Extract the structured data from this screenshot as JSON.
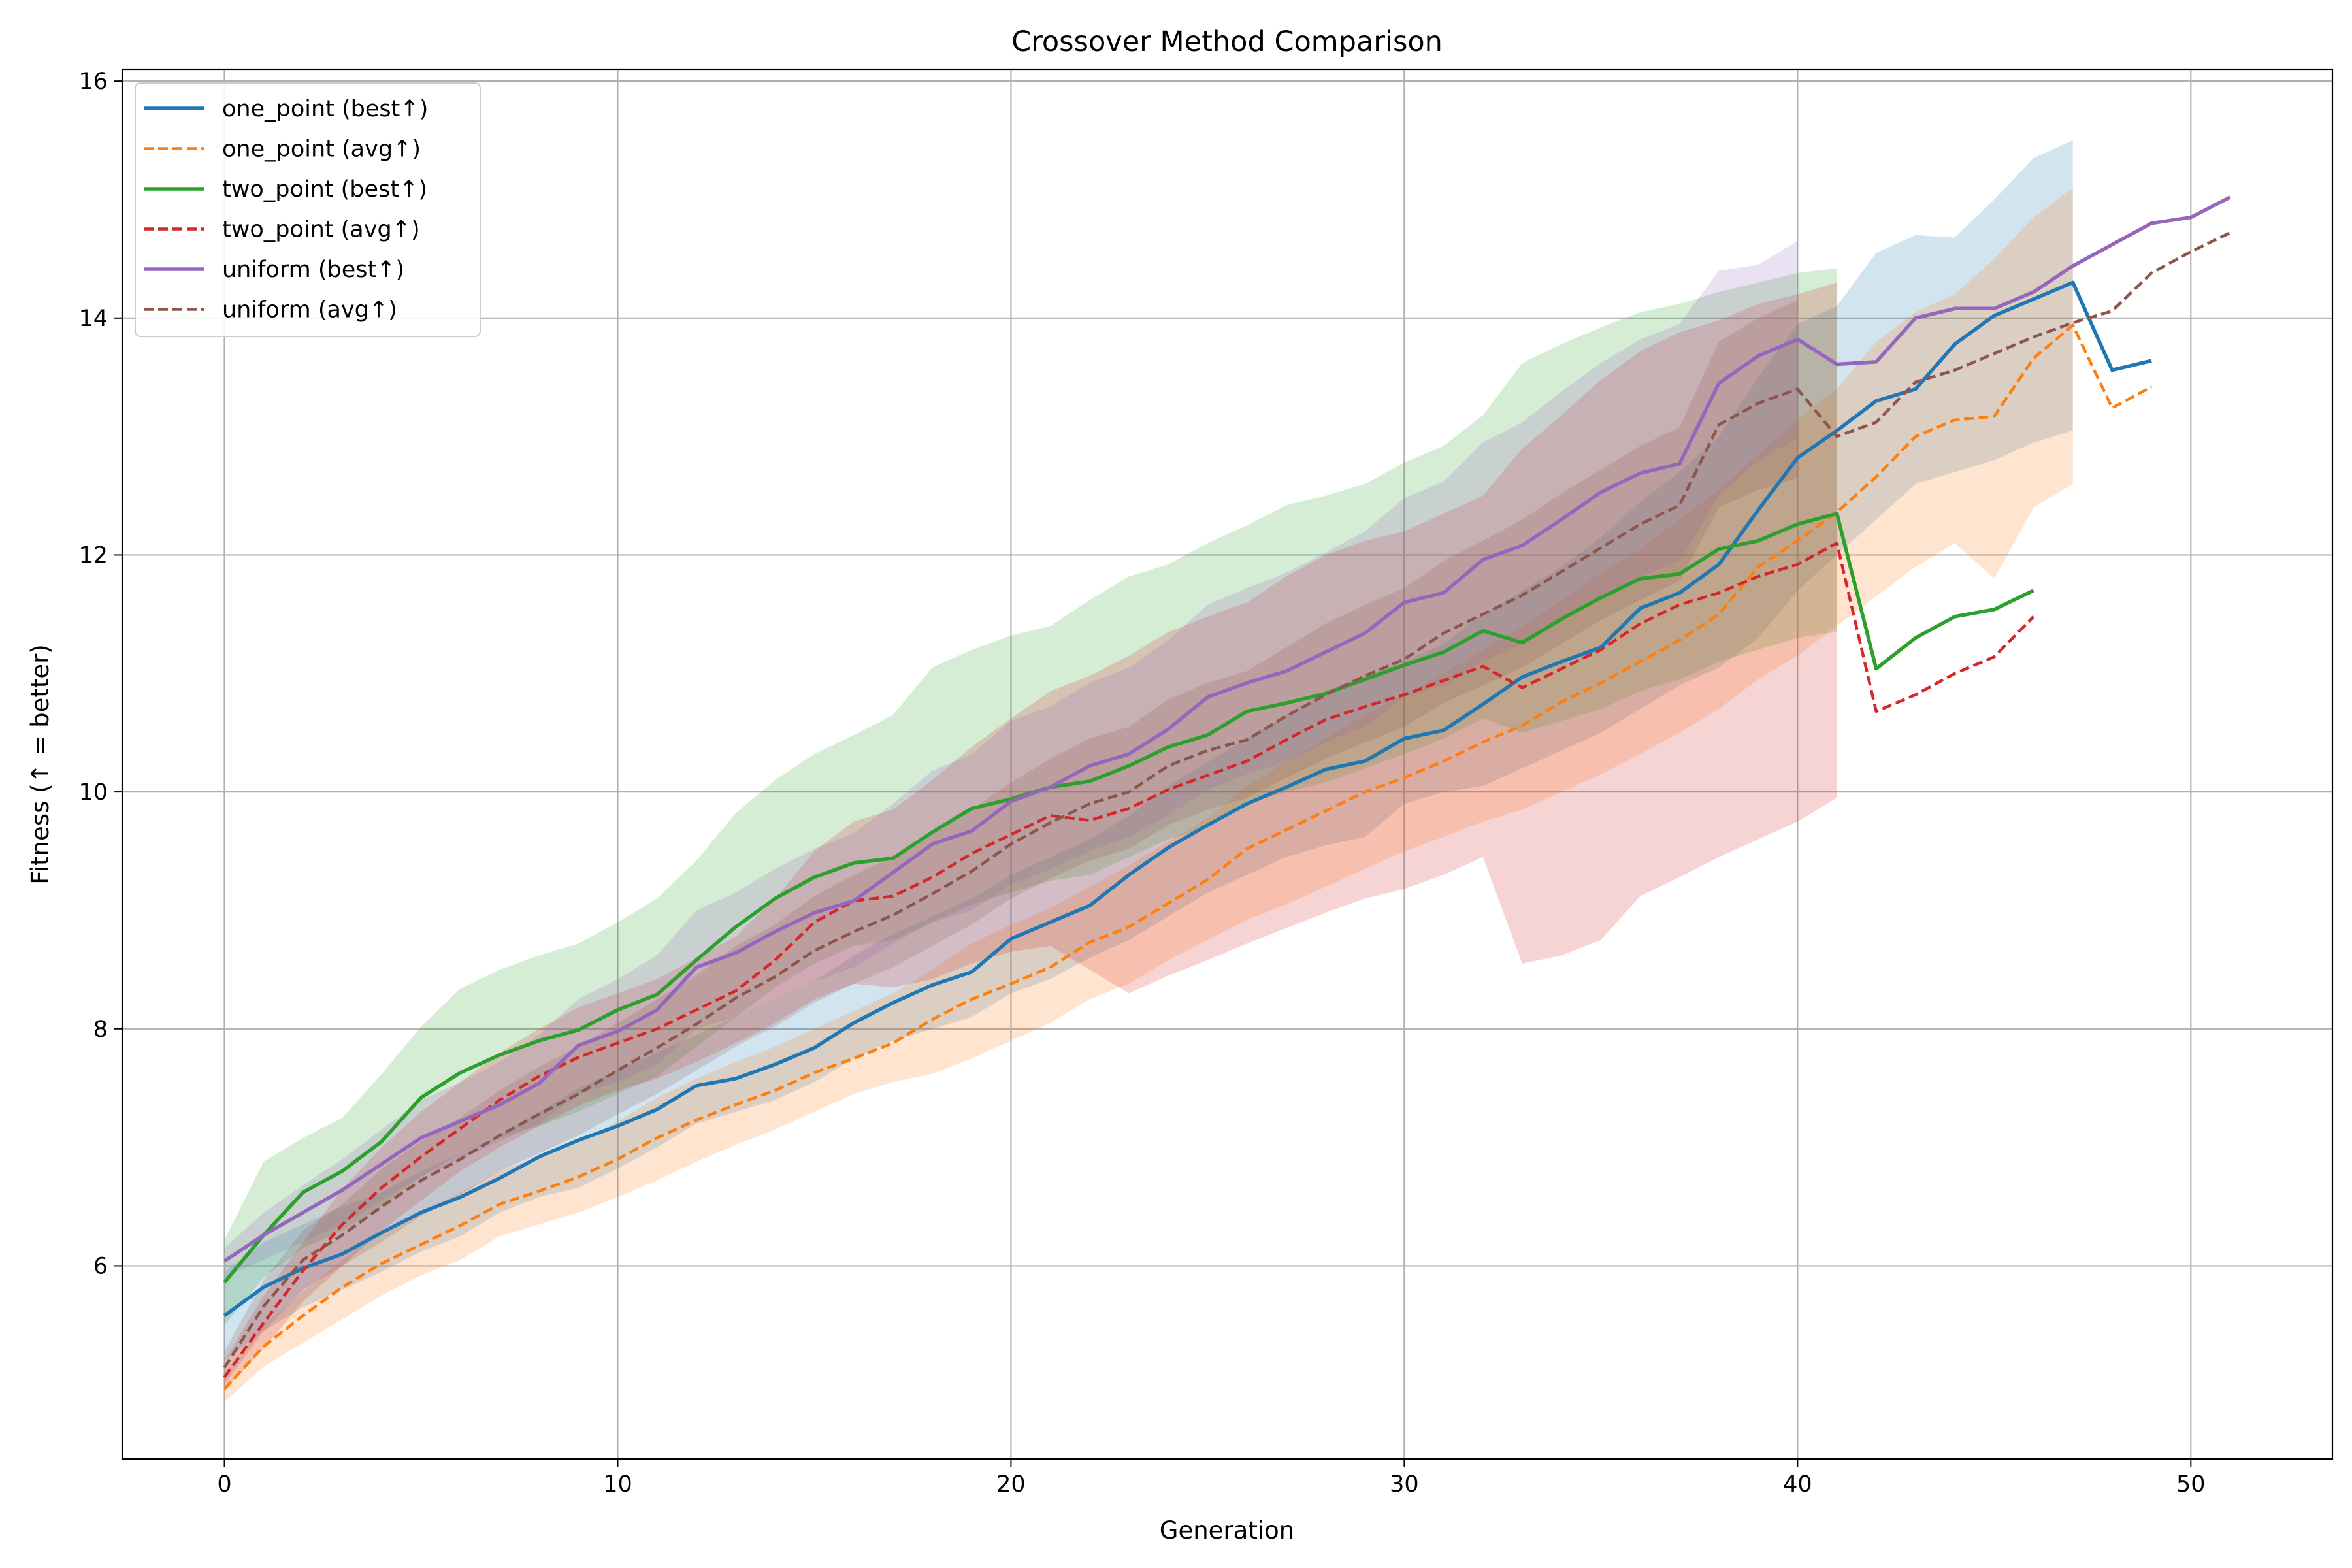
{
  "chart_data": {
    "type": "line",
    "title": "Crossover Method Comparison",
    "xlabel": "Generation",
    "ylabel": "Fitness (↑ = better)",
    "xlim": [
      -2.6,
      53.6
    ],
    "ylim": [
      4.37,
      16.1
    ],
    "xticks": [
      0,
      10,
      20,
      30,
      40,
      50
    ],
    "yticks": [
      6,
      8,
      10,
      12,
      14,
      16
    ],
    "grid": true,
    "legend_position": "top-left",
    "series": [
      {
        "name": "one_point (best↑)",
        "color": "#1f77b4",
        "dash": "solid",
        "values": [
          5.58,
          5.82,
          5.98,
          6.1,
          6.28,
          6.45,
          6.58,
          6.74,
          6.92,
          7.06,
          7.18,
          7.32,
          7.52,
          7.58,
          7.7,
          7.84,
          8.05,
          8.22,
          8.37,
          8.48,
          8.76,
          8.9,
          9.04,
          9.3,
          9.53,
          9.72,
          9.9,
          10.04,
          10.19,
          10.26,
          10.45,
          10.52,
          10.74,
          10.97,
          11.1,
          11.22,
          11.55,
          11.68,
          11.92,
          12.38,
          12.82,
          13.05,
          13.3,
          13.4,
          13.78,
          14.02,
          14.16,
          14.3,
          13.56,
          13.64
        ],
        "band_lo": [
          5.2,
          5.45,
          5.65,
          5.8,
          5.95,
          6.12,
          6.25,
          6.45,
          6.58,
          6.66,
          6.82,
          7.0,
          7.2,
          7.3,
          7.4,
          7.55,
          7.75,
          7.9,
          8.0,
          8.1,
          8.3,
          8.42,
          8.6,
          8.75,
          8.95,
          9.15,
          9.3,
          9.45,
          9.55,
          9.62,
          9.9,
          10.0,
          10.05,
          10.2,
          10.35,
          10.5,
          10.7,
          10.9,
          11.05,
          11.3,
          11.7,
          12.0,
          12.3,
          12.6,
          12.7,
          12.8,
          12.95,
          13.05,
          null,
          null
        ],
        "band_hi": [
          5.95,
          6.2,
          6.35,
          6.5,
          6.62,
          6.8,
          6.95,
          7.1,
          7.3,
          7.5,
          7.65,
          7.8,
          7.95,
          8.1,
          8.25,
          8.4,
          8.62,
          8.8,
          8.95,
          9.1,
          9.3,
          9.45,
          9.6,
          9.8,
          10.05,
          10.25,
          10.45,
          10.65,
          10.85,
          10.98,
          11.1,
          11.25,
          11.5,
          11.7,
          11.9,
          12.15,
          12.45,
          12.7,
          13.0,
          13.5,
          13.95,
          14.1,
          14.55,
          14.7,
          14.68,
          15.0,
          15.35,
          15.5,
          null,
          null
        ]
      },
      {
        "name": "one_point (avg↑)",
        "color": "#ff7f0e",
        "dash": "dashed",
        "values": [
          4.96,
          5.32,
          5.58,
          5.82,
          6.02,
          6.18,
          6.34,
          6.52,
          6.63,
          6.75,
          6.9,
          7.08,
          7.23,
          7.36,
          7.48,
          7.63,
          7.75,
          7.88,
          8.08,
          8.25,
          8.38,
          8.52,
          8.73,
          8.86,
          9.06,
          9.26,
          9.52,
          9.68,
          9.84,
          10.0,
          10.12,
          10.26,
          10.42,
          10.56,
          10.76,
          10.92,
          11.1,
          11.28,
          11.5,
          11.9,
          12.12,
          12.36,
          12.66,
          13.0,
          13.14,
          13.17,
          13.66,
          13.94,
          13.24,
          13.42
        ],
        "band_lo": [
          4.85,
          5.15,
          5.35,
          5.55,
          5.75,
          5.92,
          6.05,
          6.25,
          6.35,
          6.45,
          6.58,
          6.72,
          6.88,
          7.02,
          7.15,
          7.3,
          7.45,
          7.55,
          7.62,
          7.75,
          7.9,
          8.05,
          8.25,
          8.38,
          8.58,
          8.75,
          8.92,
          9.05,
          9.2,
          9.35,
          9.5,
          9.62,
          9.75,
          9.85,
          10.0,
          10.15,
          10.32,
          10.5,
          10.7,
          10.95,
          11.15,
          11.4,
          11.65,
          11.9,
          12.1,
          11.8,
          12.4,
          12.6,
          null,
          null
        ],
        "band_hi": [
          5.1,
          5.5,
          5.78,
          6.05,
          6.28,
          6.45,
          6.62,
          6.8,
          6.92,
          7.05,
          7.22,
          7.42,
          7.58,
          7.72,
          7.85,
          8.0,
          8.15,
          8.3,
          8.5,
          8.72,
          8.88,
          9.02,
          9.2,
          9.38,
          9.58,
          9.78,
          10.05,
          10.25,
          10.45,
          10.65,
          10.82,
          11.0,
          11.2,
          11.4,
          11.62,
          11.85,
          12.05,
          12.3,
          12.55,
          12.85,
          13.15,
          13.4,
          13.8,
          14.05,
          14.2,
          14.5,
          14.85,
          15.1,
          null,
          null
        ]
      },
      {
        "name": "two_point (best↑)",
        "color": "#2ca02c",
        "dash": "solid",
        "values": [
          5.86,
          6.26,
          6.62,
          6.8,
          7.05,
          7.42,
          7.63,
          7.78,
          7.9,
          7.99,
          8.16,
          8.29,
          8.58,
          8.86,
          9.1,
          9.28,
          9.4,
          9.44,
          9.66,
          9.86,
          9.94,
          10.04,
          10.09,
          10.22,
          10.38,
          10.48,
          10.68,
          10.75,
          10.83,
          10.95,
          11.07,
          11.18,
          11.36,
          11.26,
          11.46,
          11.64,
          11.8,
          11.84,
          12.05,
          12.12,
          12.26,
          12.35,
          11.04,
          11.3,
          11.48,
          11.54,
          11.7
        ],
        "band_lo": [
          5.5,
          5.9,
          6.15,
          6.3,
          6.5,
          6.75,
          6.95,
          7.08,
          7.18,
          7.3,
          7.45,
          7.6,
          7.85,
          8.1,
          8.35,
          8.55,
          8.7,
          8.75,
          8.9,
          9.05,
          9.15,
          9.25,
          9.3,
          9.45,
          9.6,
          9.7,
          9.9,
          10.0,
          10.08,
          10.2,
          10.32,
          10.45,
          10.62,
          10.5,
          10.6,
          10.7,
          10.85,
          10.95,
          11.1,
          11.2,
          11.3,
          11.35,
          null,
          null,
          null,
          null,
          null
        ],
        "band_hi": [
          6.22,
          6.88,
          7.08,
          7.25,
          7.62,
          8.02,
          8.34,
          8.5,
          8.62,
          8.72,
          8.9,
          9.1,
          9.42,
          9.82,
          10.1,
          10.32,
          10.48,
          10.65,
          11.05,
          11.2,
          11.32,
          11.4,
          11.62,
          11.82,
          11.92,
          12.1,
          12.25,
          12.42,
          12.5,
          12.6,
          12.78,
          12.92,
          13.18,
          13.62,
          13.78,
          13.92,
          14.05,
          14.12,
          14.22,
          14.3,
          14.38,
          14.42,
          null,
          null,
          null,
          null,
          null
        ]
      },
      {
        "name": "two_point (avg↑)",
        "color": "#d62728",
        "dash": "dashed",
        "values": [
          5.06,
          5.52,
          5.96,
          6.35,
          6.66,
          6.92,
          7.16,
          7.4,
          7.6,
          7.76,
          7.88,
          8.0,
          8.16,
          8.32,
          8.58,
          8.9,
          9.08,
          9.12,
          9.28,
          9.48,
          9.64,
          9.8,
          9.76,
          9.86,
          10.02,
          10.14,
          10.26,
          10.44,
          10.61,
          10.72,
          10.82,
          10.94,
          11.06,
          10.88,
          11.04,
          11.2,
          11.42,
          11.58,
          11.68,
          11.82,
          11.92,
          12.1,
          10.68,
          10.82,
          11.0,
          11.14,
          11.48
        ],
        "band_lo": [
          4.95,
          5.3,
          5.7,
          6.0,
          6.3,
          6.55,
          6.8,
          7.0,
          7.18,
          7.35,
          7.48,
          7.58,
          7.72,
          7.88,
          8.05,
          8.25,
          8.38,
          8.35,
          8.42,
          8.55,
          8.65,
          8.7,
          8.5,
          8.3,
          8.45,
          8.58,
          8.72,
          8.85,
          8.98,
          9.1,
          9.18,
          9.3,
          9.45,
          8.55,
          8.62,
          8.75,
          9.12,
          9.28,
          9.45,
          9.6,
          9.75,
          9.95,
          null,
          null,
          null,
          null,
          null
        ],
        "band_hi": [
          5.2,
          5.75,
          6.2,
          6.65,
          7.0,
          7.3,
          7.55,
          7.8,
          8.0,
          8.18,
          8.3,
          8.42,
          8.6,
          8.78,
          9.1,
          9.5,
          9.75,
          9.85,
          10.1,
          10.38,
          10.62,
          10.85,
          10.98,
          11.15,
          11.35,
          11.48,
          11.6,
          11.82,
          12.0,
          12.12,
          12.2,
          12.35,
          12.5,
          12.9,
          13.18,
          13.48,
          13.72,
          13.88,
          13.98,
          14.12,
          14.2,
          14.3,
          null,
          null,
          null,
          null,
          null
        ]
      },
      {
        "name": "uniform (best↑)",
        "color": "#9467bd",
        "dash": "solid",
        "values": [
          6.04,
          6.26,
          6.45,
          6.64,
          6.86,
          7.08,
          7.22,
          7.36,
          7.54,
          7.86,
          7.98,
          8.16,
          8.52,
          8.64,
          8.82,
          8.98,
          9.08,
          9.32,
          9.56,
          9.67,
          9.92,
          10.04,
          10.22,
          10.32,
          10.53,
          10.8,
          10.92,
          11.02,
          11.18,
          11.34,
          11.6,
          11.68,
          11.96,
          12.08,
          12.3,
          12.53,
          12.69,
          12.77,
          13.45,
          13.68,
          13.82,
          13.61,
          13.63,
          14.0,
          14.08,
          14.08,
          14.22,
          14.44,
          14.62,
          14.8,
          14.85,
          15.02
        ],
        "band_lo": [
          5.9,
          6.05,
          6.2,
          6.35,
          6.55,
          6.75,
          6.9,
          7.05,
          7.2,
          7.45,
          7.55,
          7.7,
          8.0,
          8.1,
          8.25,
          8.4,
          8.52,
          8.72,
          8.9,
          9.0,
          9.22,
          9.35,
          9.5,
          9.62,
          9.8,
          10.02,
          10.15,
          10.25,
          10.42,
          10.55,
          10.8,
          10.9,
          11.1,
          11.25,
          11.45,
          11.65,
          11.82,
          11.95,
          12.5,
          12.8,
          12.98,
          null,
          null,
          null,
          null,
          null,
          null,
          null,
          null,
          null,
          null,
          null
        ],
        "band_hi": [
          6.15,
          6.45,
          6.68,
          6.9,
          7.15,
          7.4,
          7.55,
          7.72,
          7.95,
          8.25,
          8.42,
          8.62,
          9.0,
          9.15,
          9.35,
          9.52,
          9.65,
          9.9,
          10.18,
          10.32,
          10.6,
          10.72,
          10.92,
          11.05,
          11.28,
          11.58,
          11.72,
          11.85,
          12.02,
          12.2,
          12.48,
          12.62,
          12.95,
          13.12,
          13.38,
          13.62,
          13.82,
          13.95,
          14.4,
          14.45,
          14.65,
          null,
          null,
          null,
          null,
          null,
          null,
          null,
          null,
          null,
          null,
          null
        ]
      },
      {
        "name": "uniform (avg↑)",
        "color": "#8c564b",
        "dash": "dashed",
        "values": [
          5.14,
          5.66,
          6.05,
          6.26,
          6.5,
          6.72,
          6.9,
          7.1,
          7.28,
          7.45,
          7.65,
          7.84,
          8.04,
          8.26,
          8.44,
          8.66,
          8.82,
          8.96,
          9.14,
          9.33,
          9.56,
          9.74,
          9.9,
          10.0,
          10.22,
          10.35,
          10.44,
          10.64,
          10.82,
          10.98,
          11.12,
          11.34,
          11.5,
          11.66,
          11.86,
          12.06,
          12.26,
          12.42,
          13.1,
          13.28,
          13.4,
          13.0,
          13.12,
          13.46,
          13.56,
          13.7,
          13.84,
          13.96,
          14.06,
          14.38,
          14.56,
          14.72
        ],
        "band_lo": [
          5.0,
          5.45,
          5.8,
          6.0,
          6.2,
          6.42,
          6.6,
          6.8,
          6.95,
          7.1,
          7.28,
          7.45,
          7.65,
          7.85,
          8.02,
          8.22,
          8.38,
          8.52,
          8.7,
          8.88,
          9.1,
          9.27,
          9.42,
          9.52,
          9.72,
          9.85,
          9.95,
          10.12,
          10.28,
          10.42,
          10.55,
          10.75,
          10.9,
          11.05,
          11.25,
          11.45,
          11.62,
          11.78,
          12.4,
          12.55,
          12.65,
          null,
          null,
          null,
          null,
          null,
          null,
          null,
          null,
          null,
          null,
          null
        ],
        "band_hi": [
          5.28,
          5.88,
          6.3,
          6.52,
          6.82,
          7.05,
          7.25,
          7.48,
          7.68,
          7.85,
          8.05,
          8.25,
          8.45,
          8.7,
          8.88,
          9.12,
          9.3,
          9.45,
          9.65,
          9.85,
          10.08,
          10.28,
          10.45,
          10.55,
          10.78,
          10.92,
          11.02,
          11.22,
          11.42,
          11.58,
          11.72,
          11.95,
          12.12,
          12.3,
          12.52,
          12.72,
          12.92,
          13.08,
          13.8,
          14.0,
          14.15,
          null,
          null,
          null,
          null,
          null,
          null,
          null,
          null,
          null,
          null,
          null
        ]
      }
    ]
  }
}
